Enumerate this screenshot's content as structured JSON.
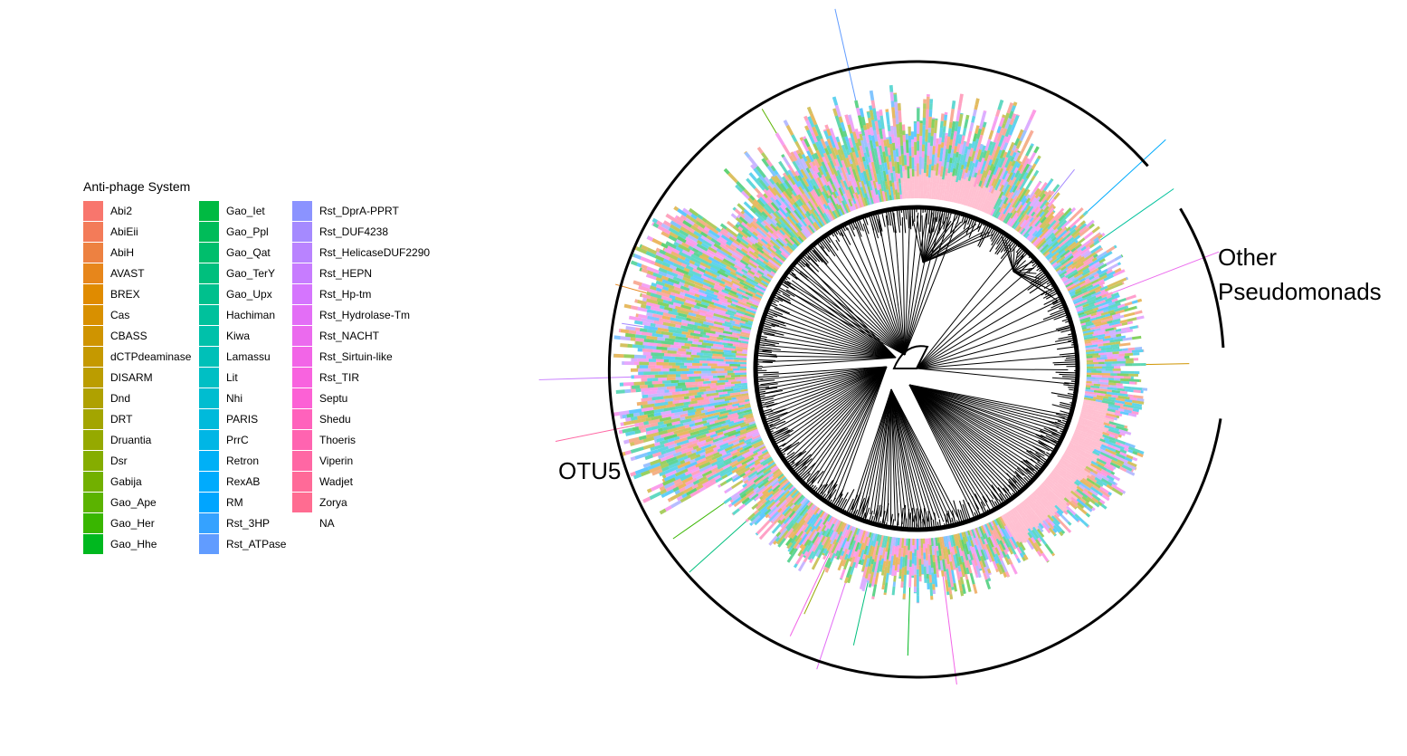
{
  "legend": {
    "title": "Anti-phage System",
    "columns": [
      [
        {
          "label": "Abi2",
          "color": "#F8766D"
        },
        {
          "label": "AbiEii",
          "color": "#F37B59"
        },
        {
          "label": "AbiH",
          "color": "#ED8141"
        },
        {
          "label": "AVAST",
          "color": "#E7861B"
        },
        {
          "label": "BREX",
          "color": "#E08B00"
        },
        {
          "label": "Cas",
          "color": "#D89000"
        },
        {
          "label": "CBASS",
          "color": "#CF9400"
        },
        {
          "label": "dCTPdeaminase",
          "color": "#C59900"
        },
        {
          "label": "DISARM",
          "color": "#BB9D00"
        },
        {
          "label": "Dnd",
          "color": "#AFA100"
        },
        {
          "label": "DRT",
          "color": "#A3A500"
        },
        {
          "label": "Druantia",
          "color": "#95A900"
        },
        {
          "label": "Dsr",
          "color": "#85AD00"
        },
        {
          "label": "Gabija",
          "color": "#72B000"
        },
        {
          "label": "Gao_Ape",
          "color": "#5BB300"
        },
        {
          "label": "Gao_Her",
          "color": "#39B600"
        },
        {
          "label": "Gao_Hhe",
          "color": "#00B81F"
        }
      ],
      [
        {
          "label": "Gao_Iet",
          "color": "#00BA42"
        },
        {
          "label": "Gao_Ppl",
          "color": "#00BC59"
        },
        {
          "label": "Gao_Qat",
          "color": "#00BE6C"
        },
        {
          "label": "Gao_TerY",
          "color": "#00BF7D"
        },
        {
          "label": "Gao_Upx",
          "color": "#00C08D"
        },
        {
          "label": "Hachiman",
          "color": "#00C19C"
        },
        {
          "label": "Kiwa",
          "color": "#00C1AA"
        },
        {
          "label": "Lamassu",
          "color": "#00C0B8"
        },
        {
          "label": "Lit",
          "color": "#00BFC4"
        },
        {
          "label": "Nhi",
          "color": "#00BDD0"
        },
        {
          "label": "PARIS",
          "color": "#00BADB"
        },
        {
          "label": "PrrC",
          "color": "#00B6E5"
        },
        {
          "label": "Retron",
          "color": "#00B0F6"
        },
        {
          "label": "RexAB",
          "color": "#00ABFD"
        },
        {
          "label": "RM",
          "color": "#00A5FF"
        },
        {
          "label": "Rst_3HP",
          "color": "#35A2FF"
        },
        {
          "label": "Rst_ATPase",
          "color": "#619CFF"
        }
      ],
      [
        {
          "label": "Rst_DprA-PPRT",
          "color": "#8B93FF"
        },
        {
          "label": "Rst_DUF4238",
          "color": "#A58AFF"
        },
        {
          "label": "Rst_HelicaseDUF2290",
          "color": "#B983FF"
        },
        {
          "label": "Rst_HEPN",
          "color": "#C77CFF"
        },
        {
          "label": "Rst_Hp-tm",
          "color": "#D575FE"
        },
        {
          "label": "Rst_Hydrolase-Tm",
          "color": "#E36EF6"
        },
        {
          "label": "Rst_NACHT",
          "color": "#EB6AEE"
        },
        {
          "label": "Rst_Sirtuin-like",
          "color": "#F265E7"
        },
        {
          "label": "Rst_TIR",
          "color": "#F863DF"
        },
        {
          "label": "Septu",
          "color": "#FC61D5"
        },
        {
          "label": "Shedu",
          "color": "#FF62BC"
        },
        {
          "label": "Thoeris",
          "color": "#FF64B0"
        },
        {
          "label": "Viperin",
          "color": "#FF67A4"
        },
        {
          "label": "Wadjet",
          "color": "#FF6A98"
        },
        {
          "label": "Zorya",
          "color": "#FF6C91"
        },
        {
          "label": "NA",
          "color": ""
        }
      ]
    ]
  },
  "clades": {
    "otu5": "OTU5",
    "other_line1": "Other",
    "other_line2": "Pseudomonads"
  }
}
